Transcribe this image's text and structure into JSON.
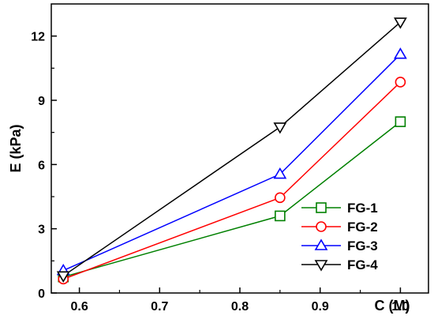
{
  "chart_data": {
    "type": "line",
    "title": "",
    "xlabel": "C (M)",
    "ylabel": "E (kPa)",
    "xlim": [
      0.565,
      1.035
    ],
    "ylim": [
      0,
      13.5
    ],
    "xticks": [
      "0.6",
      "0.7",
      "0.8",
      "0.9",
      "1.0"
    ],
    "yticks": [
      "0",
      "3",
      "6",
      "9",
      "12"
    ],
    "grid": false,
    "legend_position": "bottom-right",
    "x": [
      0.58,
      0.85,
      1.0
    ],
    "series": [
      {
        "name": "FG-1",
        "color": "#008000",
        "marker": "square",
        "values": [
          0.75,
          3.6,
          8.0
        ]
      },
      {
        "name": "FG-2",
        "color": "#ff0000",
        "marker": "circle",
        "values": [
          0.65,
          4.45,
          9.85
        ]
      },
      {
        "name": "FG-3",
        "color": "#0000ff",
        "marker": "triangle-up",
        "values": [
          1.05,
          5.55,
          11.15
        ]
      },
      {
        "name": "FG-4",
        "color": "#000000",
        "marker": "triangle-down",
        "values": [
          0.8,
          7.75,
          12.65
        ]
      }
    ]
  }
}
